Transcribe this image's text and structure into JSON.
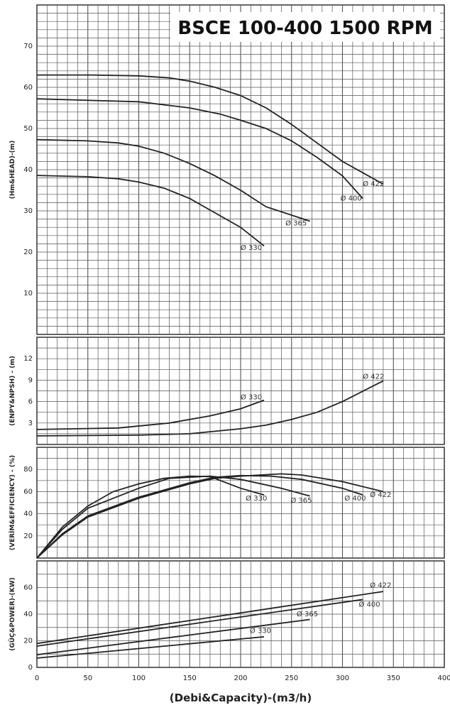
{
  "chart_data": {
    "type": "line",
    "title": "BSCE 100-400 1500 RPM",
    "xlabel": "(Debi&Capacity)-(m3/h)",
    "xlim": [
      0,
      400
    ],
    "xticks": [
      0,
      50,
      100,
      150,
      200,
      250,
      300,
      350,
      400
    ],
    "grid": true,
    "panels": [
      {
        "id": "head",
        "ylabel": "(Hm&HEAD)-(m)",
        "ylim": [
          0,
          80
        ],
        "yticks": [
          10,
          20,
          30,
          40,
          50,
          60,
          70
        ],
        "series": [
          {
            "name": "Ø 422",
            "x": [
              0,
              50,
              100,
              130,
              150,
              175,
              200,
              225,
              250,
              275,
              300,
              340
            ],
            "y": [
              63,
              63,
              62.8,
              62.3,
              61.5,
              60,
              58,
              55,
              51,
              46.5,
              42,
              36.5
            ],
            "label_at": [
              320,
              36
            ]
          },
          {
            "name": "Ø 400",
            "x": [
              0,
              100,
              150,
              180,
              200,
              225,
              250,
              275,
              300,
              320
            ],
            "y": [
              57.2,
              56.5,
              55,
              53.5,
              52,
              50,
              47,
              43,
              38.5,
              33
            ],
            "label_at": [
              298,
              32.5
            ]
          },
          {
            "name": "Ø 365",
            "x": [
              0,
              50,
              80,
              100,
              125,
              150,
              175,
              200,
              225,
              268
            ],
            "y": [
              47.3,
              47,
              46.5,
              45.7,
              44,
              41.5,
              38.5,
              35,
              31,
              27.5
            ],
            "label_at": [
              244,
              26.5
            ]
          },
          {
            "name": "Ø 330",
            "x": [
              0,
              50,
              80,
              100,
              125,
              150,
              175,
              200,
              223
            ],
            "y": [
              38.6,
              38.3,
              37.8,
              37,
              35.5,
              33,
              29.5,
              26,
              21.5
            ],
            "label_at": [
              200,
              20.5
            ]
          }
        ]
      },
      {
        "id": "npsh",
        "ylabel": "(ENPY&NPSH) - (m)",
        "ylim": [
          0,
          15
        ],
        "yticks": [
          3,
          6,
          9,
          12
        ],
        "series": [
          {
            "name": "Ø 330",
            "x": [
              0,
              80,
              130,
              170,
              200,
              223
            ],
            "y": [
              2.1,
              2.3,
              3,
              4,
              5,
              6.2
            ],
            "label_at": [
              200,
              6.3
            ]
          },
          {
            "name": "Ø 422",
            "x": [
              0,
              100,
              150,
              200,
              225,
              250,
              275,
              300,
              340
            ],
            "y": [
              1.2,
              1.3,
              1.5,
              2.2,
              2.7,
              3.5,
              4.5,
              6,
              8.9
            ],
            "label_at": [
              320,
              9.2
            ]
          }
        ]
      },
      {
        "id": "efficiency",
        "ylabel": "(VERİM&EFFICIENCY) - (%)",
        "ylim": [
          0,
          100
        ],
        "yticks": [
          20,
          40,
          60,
          80
        ],
        "series": [
          {
            "name": "Ø 330",
            "x": [
              0,
              25,
              50,
              75,
              100,
              125,
              150,
              170,
              200,
              223
            ],
            "y": [
              0,
              28,
              47,
              60,
              67,
              72,
              74,
              73.5,
              63,
              57
            ],
            "label_at": [
              205,
              52
            ]
          },
          {
            "name": "Ø 365",
            "x": [
              0,
              25,
              50,
              100,
              130,
              170,
              200,
              240,
              268
            ],
            "y": [
              0,
              26,
              45,
              63,
              72,
              74,
              71,
              63,
              56
            ],
            "label_at": [
              249,
              50
            ]
          },
          {
            "name": "Ø 400",
            "x": [
              0,
              25,
              50,
              100,
              150,
              175,
              200,
              230,
              260,
              300,
              320
            ],
            "y": [
              0,
              22,
              38,
              55,
              68,
              73,
              74.5,
              74,
              71,
              63,
              57
            ],
            "label_at": [
              302,
              52
            ]
          },
          {
            "name": "Ø 422",
            "x": [
              0,
              25,
              50,
              100,
              150,
              175,
              200,
              240,
              260,
              300,
              340
            ],
            "y": [
              0,
              21,
              37,
              54,
              67,
              72,
              74,
              76,
              75,
              69,
              60
            ],
            "label_at": [
              327,
              55
            ]
          }
        ]
      },
      {
        "id": "power",
        "ylabel": "(GÜÇ&POWER)-(KW)",
        "ylim": [
          0,
          80
        ],
        "yticks": [
          0,
          20,
          40,
          60
        ],
        "series": [
          {
            "name": "Ø 422",
            "x": [
              0,
              340
            ],
            "y": [
              18,
              57
            ],
            "label_at": [
              327,
              60
            ]
          },
          {
            "name": "Ø 400",
            "x": [
              0,
              320
            ],
            "y": [
              16,
              51
            ],
            "label_at": [
              316,
              45.5
            ]
          },
          {
            "name": "Ø 365",
            "x": [
              0,
              268
            ],
            "y": [
              9.5,
              36
            ],
            "label_at": [
              255,
              38.5
            ]
          },
          {
            "name": "Ø 330",
            "x": [
              0,
              223
            ],
            "y": [
              7,
              23
            ],
            "label_at": [
              209,
              26
            ]
          }
        ]
      }
    ]
  }
}
